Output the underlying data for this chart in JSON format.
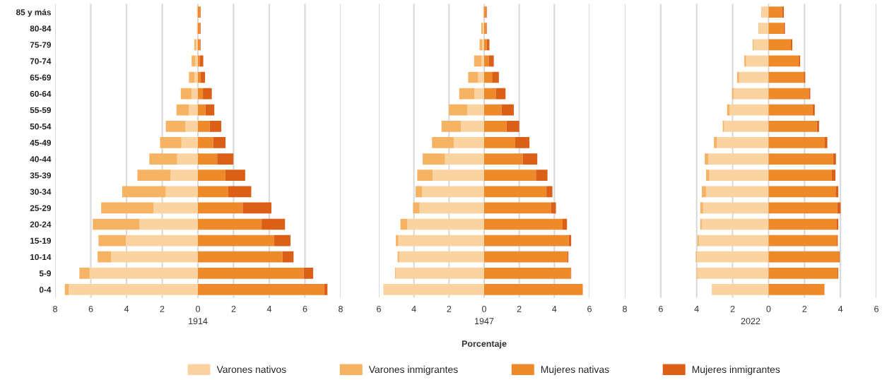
{
  "chart_data": [
    {
      "type": "bar",
      "orientation": "horizontal",
      "stacked": true,
      "xlabel": "1914",
      "grid": "x",
      "legend": false,
      "categories": [
        "85 y más",
        "80-84",
        "75-79",
        "70-74",
        "65-69",
        "60-64",
        "55-59",
        "50-54",
        "45-49",
        "40-44",
        "35-39",
        "30-34",
        "25-29",
        "20-24",
        "15-19",
        "10-14",
        "5-9",
        "0-4"
      ],
      "xlim": [
        -8,
        8
      ],
      "xticks": [
        {
          "value": -8,
          "label": "8"
        },
        {
          "value": -6,
          "label": "6"
        },
        {
          "value": -4,
          "label": "4"
        },
        {
          "value": -2,
          "label": "2"
        },
        0,
        2,
        4,
        6,
        8
      ],
      "series": [
        {
          "color": "#fbd3a0",
          "values": [
            -0.03,
            -0.03,
            -0.1,
            -0.15,
            -0.2,
            -0.36,
            -0.5,
            -0.7,
            -0.92,
            -1.16,
            -1.53,
            -1.8,
            -2.49,
            -3.27,
            -4.04,
            -4.86,
            -6.07,
            -7.24
          ]
        },
        {
          "color": "#f5b363",
          "values": [
            -0.02,
            -0.02,
            -0.1,
            -0.2,
            -0.3,
            -0.6,
            -0.7,
            -1.1,
            -1.2,
            -1.56,
            -1.86,
            -2.44,
            -2.93,
            -2.62,
            -1.53,
            -0.76,
            -0.57,
            -0.22
          ]
        },
        {
          "color": "#ee8a2a",
          "values": [
            0.1,
            0.1,
            0.1,
            0.1,
            0.15,
            0.28,
            0.42,
            0.66,
            0.85,
            1.08,
            1.54,
            1.7,
            2.51,
            3.57,
            4.28,
            4.74,
            5.92,
            7.08
          ]
        },
        {
          "color": "#db5f17",
          "values": [
            0.05,
            0.05,
            0.05,
            0.2,
            0.25,
            0.5,
            0.5,
            0.65,
            0.7,
            0.91,
            1.11,
            1.29,
            1.61,
            1.31,
            0.91,
            0.62,
            0.54,
            0.18
          ]
        }
      ]
    },
    {
      "type": "bar",
      "orientation": "horizontal",
      "stacked": true,
      "xlabel": "1947",
      "grid": "x",
      "legend": "bottom",
      "tick_labels": "x",
      "annotations": [
        "Porcentaje"
      ],
      "categories": [
        null,
        null,
        null,
        null,
        null,
        null,
        null,
        null,
        null,
        null,
        null,
        null,
        null,
        null,
        null,
        null,
        null,
        null
      ],
      "xlim": [
        -6,
        6
      ],
      "xticks": [
        {
          "value": -6,
          "label": "6"
        },
        {
          "value": -4,
          "label": "4"
        },
        {
          "value": -2,
          "label": "2"
        },
        0,
        2,
        4,
        6
      ],
      "series": [
        {
          "name": "Varones nativos",
          "color": "#fbd3a0",
          "values": [
            -0.03,
            -0.08,
            -0.12,
            -0.16,
            -0.34,
            -0.55,
            -0.95,
            -1.32,
            -1.72,
            -2.23,
            -2.93,
            -3.54,
            -3.68,
            -4.39,
            -4.89,
            -4.84,
            -5.03,
            -5.74
          ]
        },
        {
          "name": "Varones inmigrantes",
          "color": "#f5b363",
          "values": [
            -0.02,
            -0.08,
            -0.14,
            -0.41,
            -0.57,
            -0.87,
            -1.06,
            -1.11,
            -1.25,
            -1.27,
            -0.88,
            -0.37,
            -0.37,
            -0.38,
            -0.14,
            -0.09,
            -0.04,
            null
          ]
        },
        {
          "name": "Mujeres nativas",
          "color": "#ee8a2a",
          "values": [
            0.1,
            0.1,
            0.15,
            0.26,
            0.45,
            0.66,
            0.99,
            1.28,
            1.77,
            2.2,
            2.95,
            3.55,
            3.8,
            4.47,
            4.82,
            4.73,
            4.93,
            5.62
          ]
        },
        {
          "name": "Mujeres inmigrantes",
          "color": "#db5f17",
          "values": [
            0.05,
            0.05,
            0.15,
            0.29,
            0.39,
            0.56,
            0.7,
            0.72,
            0.81,
            0.83,
            0.66,
            0.34,
            0.29,
            0.25,
            0.14,
            0.07,
            0.03,
            null
          ]
        }
      ]
    },
    {
      "type": "bar",
      "orientation": "horizontal",
      "stacked": true,
      "xlabel": "2022",
      "grid": "x",
      "legend": false,
      "tick_labels": "x",
      "categories": [
        null,
        null,
        null,
        null,
        null,
        null,
        null,
        null,
        null,
        null,
        null,
        null,
        null,
        null,
        null,
        null,
        null,
        null
      ],
      "xlim": [
        -8,
        6
      ],
      "xticks": [
        {
          "value": -8,
          "label": "8"
        },
        {
          "value": -6,
          "label": "6"
        },
        {
          "value": -4,
          "label": "4"
        },
        {
          "value": -2,
          "label": "2"
        },
        0,
        2,
        4,
        6
      ],
      "series": [
        {
          "color": "#fbd3a0",
          "values": [
            -0.39,
            -0.53,
            -0.84,
            -1.25,
            -1.64,
            -1.95,
            -2.16,
            -2.47,
            -2.89,
            -3.35,
            -3.29,
            -3.48,
            -3.64,
            -3.72,
            -3.88,
            -4.0,
            -3.97,
            -3.13
          ]
        },
        {
          "color": "#f5b363",
          "values": [
            -0.02,
            -0.03,
            -0.04,
            -0.1,
            -0.11,
            -0.08,
            -0.15,
            -0.08,
            -0.15,
            -0.2,
            -0.19,
            -0.23,
            -0.16,
            -0.08,
            -0.08,
            -0.05,
            -0.04,
            -0.02
          ]
        },
        {
          "color": "#ee8a2a",
          "values": [
            0.76,
            0.83,
            1.24,
            1.68,
            1.96,
            2.24,
            2.45,
            2.68,
            3.13,
            3.59,
            3.52,
            3.73,
            3.83,
            3.77,
            3.8,
            3.92,
            3.84,
            3.11
          ]
        },
        {
          "color": "#db5f17",
          "values": [
            0.09,
            0.08,
            0.08,
            0.08,
            0.08,
            0.08,
            0.12,
            0.13,
            0.14,
            0.16,
            0.2,
            0.15,
            0.18,
            0.11,
            0.05,
            0.04,
            0.04,
            null
          ]
        }
      ]
    }
  ]
}
